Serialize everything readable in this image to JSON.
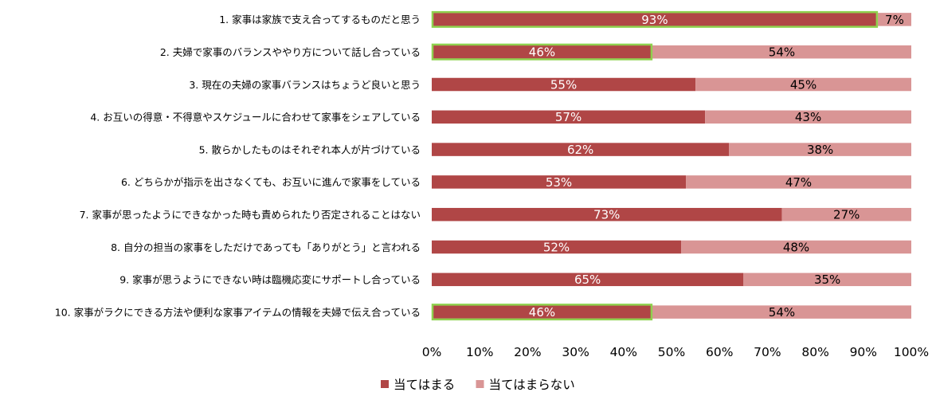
{
  "chart_data": {
    "type": "bar",
    "orientation": "horizontal",
    "stacked": true,
    "categories": [
      "1. 家事は家族で支え合ってするものだと思う",
      "2. 夫婦で家事のバランスややり方について話し合っている",
      "3. 現在の夫婦の家事バランスはちょうど良いと思う",
      "4. お互いの得意・不得意やスケジュールに合わせて家事をシェアしている",
      "5. 散らかしたものはそれぞれ本人が片づけている",
      "6. どちらかが指示を出さなくても、お互いに進んで家事をしている",
      "7. 家事が思ったようにできなかった時も責められたり否定されることはない",
      "8. 自分の担当の家事をしただけであっても「ありがとう」と言われる",
      "9. 家事が思うようにできない時は臨機応変にサポートし合っている",
      "10. 家事がラクにできる方法や便利な家事アイテムの情報を夫婦で伝え合っている"
    ],
    "series": [
      {
        "name": "当てはまる",
        "color": "#b04646",
        "label_color": "#ffffff",
        "values": [
          93,
          46,
          55,
          57,
          62,
          53,
          73,
          52,
          65,
          46
        ]
      },
      {
        "name": "当てはまらない",
        "color": "#d99595",
        "label_color": "#000000",
        "values": [
          7,
          54,
          45,
          43,
          38,
          47,
          27,
          48,
          35,
          54
        ]
      }
    ],
    "value_labels": {
      "当てはまる": [
        "93%",
        "46%",
        "55%",
        "57%",
        "62%",
        "53%",
        "73%",
        "52%",
        "65%",
        "46%"
      ],
      "当てはまらない": [
        "7%",
        "54%",
        "45%",
        "43%",
        "38%",
        "47%",
        "27%",
        "48%",
        "35%",
        "54%"
      ]
    },
    "highlighted_rows": [
      1,
      2,
      10
    ],
    "highlight_color": "#8fd14f",
    "xlim": [
      0,
      100
    ],
    "x_ticks": [
      "0%",
      "10%",
      "20%",
      "30%",
      "40%",
      "50%",
      "60%",
      "70%",
      "80%",
      "90%",
      "100%"
    ],
    "grid": false,
    "legend_position": "bottom-center"
  }
}
